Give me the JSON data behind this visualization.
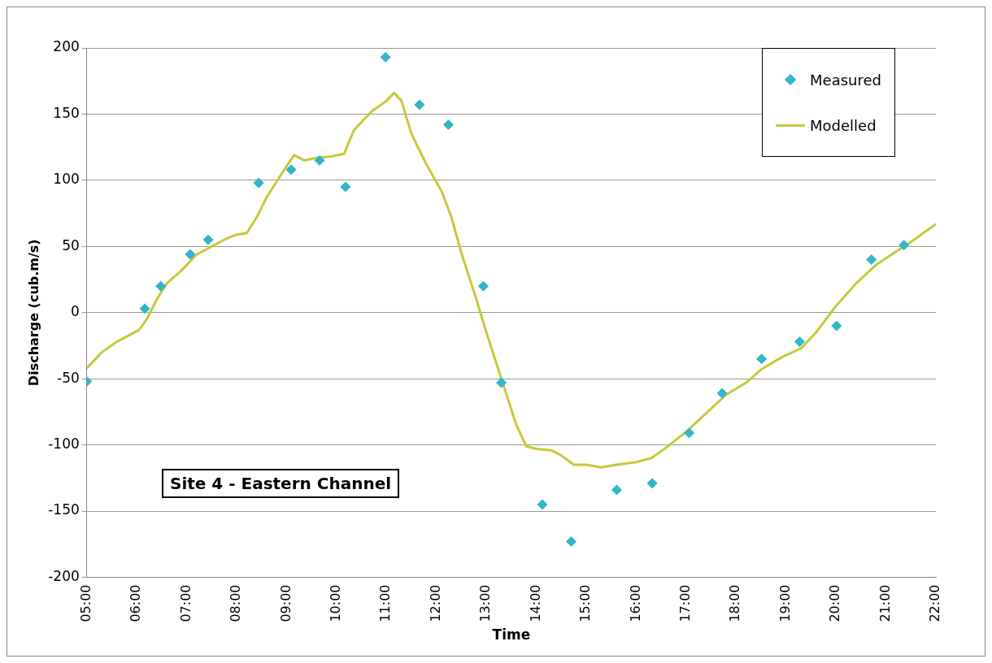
{
  "chart_data": {
    "type": "scatter",
    "xlabel": "Time",
    "ylabel": "Discharge (cub.m/s)",
    "annotations": [
      "Site 4 - Eastern Channel"
    ],
    "xlim": [
      5,
      22
    ],
    "xticks": [
      {
        "value": 5,
        "label": "05:00"
      },
      {
        "value": 6,
        "label": "06:00"
      },
      {
        "value": 7,
        "label": "07:00"
      },
      {
        "value": 8,
        "label": "08:00"
      },
      {
        "value": 9,
        "label": "09:00"
      },
      {
        "value": 10,
        "label": "10:00"
      },
      {
        "value": 11,
        "label": "11:00"
      },
      {
        "value": 12,
        "label": "12:00"
      },
      {
        "value": 13,
        "label": "13:00"
      },
      {
        "value": 14,
        "label": "14:00"
      },
      {
        "value": 15,
        "label": "15:00"
      },
      {
        "value": 16,
        "label": "16:00"
      },
      {
        "value": 17,
        "label": "17:00"
      },
      {
        "value": 18,
        "label": "18:00"
      },
      {
        "value": 19,
        "label": "19:00"
      },
      {
        "value": 20,
        "label": "20:00"
      },
      {
        "value": 21,
        "label": "21:00"
      },
      {
        "value": 22,
        "label": "22:00"
      }
    ],
    "ylim": [
      -200,
      200
    ],
    "yticks": [
      -200,
      -150,
      -100,
      -50,
      0,
      50,
      100,
      150,
      200
    ],
    "grid": "y",
    "legend": "top right",
    "series": [
      {
        "name": "Measured",
        "type": "scatter",
        "marker": "diamond",
        "color": "#33b5c8",
        "x": [
          5.0,
          6.16,
          6.48,
          7.07,
          7.43,
          8.44,
          9.09,
          9.66,
          10.18,
          10.98,
          11.66,
          12.24,
          12.94,
          13.3,
          14.12,
          14.7,
          15.61,
          16.32,
          17.06,
          17.72,
          18.51,
          19.27,
          20.01,
          20.71,
          21.36
        ],
        "values": [
          -52,
          3,
          20,
          44,
          55,
          98,
          108,
          115,
          95,
          193,
          157,
          142,
          20,
          -53,
          -145,
          -173,
          -134,
          -129,
          -91,
          -61,
          -35,
          -22,
          -10,
          40,
          51
        ]
      },
      {
        "name": "Modelled",
        "type": "line",
        "marker": "none",
        "color": "#c8c83a",
        "x": [
          5.0,
          5.3,
          5.6,
          5.9,
          6.05,
          6.2,
          6.4,
          6.6,
          6.9,
          7.2,
          7.5,
          7.8,
          8.0,
          8.2,
          8.4,
          8.6,
          8.9,
          9.15,
          9.35,
          9.6,
          9.9,
          10.15,
          10.35,
          10.7,
          11.0,
          11.15,
          11.3,
          11.5,
          11.8,
          12.1,
          12.3,
          12.5,
          12.8,
          13.0,
          13.3,
          13.6,
          13.8,
          14.0,
          14.3,
          14.5,
          14.75,
          15.0,
          15.3,
          15.6,
          16.0,
          16.3,
          16.6,
          17.0,
          17.4,
          17.8,
          18.2,
          18.5,
          18.9,
          19.3,
          19.6,
          20.0,
          20.4,
          20.8,
          21.2,
          21.6,
          22.0
        ],
        "values": [
          -42,
          -30,
          -22,
          -16,
          -13,
          -5,
          10,
          22,
          32,
          44,
          50,
          56,
          59,
          60,
          72,
          87,
          105,
          119,
          115,
          117,
          118,
          120,
          138,
          152,
          160,
          166,
          160,
          135,
          112,
          92,
          72,
          45,
          10,
          -15,
          -50,
          -85,
          -101,
          -103,
          -104,
          -108,
          -115,
          -115,
          -117,
          -115,
          -113,
          -110,
          -102,
          -90,
          -76,
          -62,
          -53,
          -43,
          -34,
          -27,
          -15,
          5,
          22,
          36,
          46,
          56,
          67
        ]
      }
    ]
  }
}
